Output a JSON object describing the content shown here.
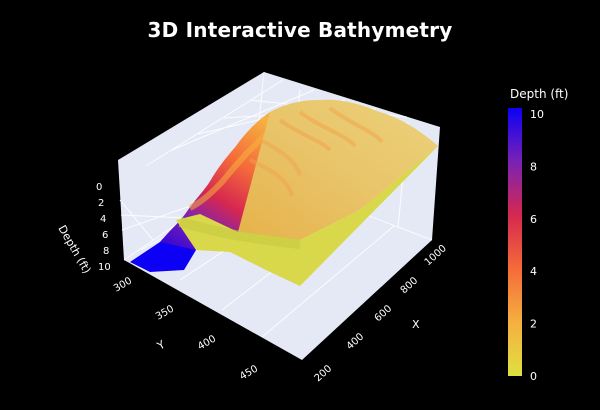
{
  "title": "3D Interactive Bathymetry",
  "chart_data": {
    "type": "surface3d",
    "title": "3D Interactive Bathymetry",
    "x_axis": {
      "label": "X",
      "range": [
        150,
        1100
      ],
      "ticks": [
        200,
        400,
        600,
        800,
        1000
      ]
    },
    "y_axis": {
      "label": "Y",
      "range": [
        285,
        470
      ],
      "ticks": [
        300,
        350,
        400,
        450
      ]
    },
    "z_axis": {
      "label": "Depth (ft)",
      "range": [
        10,
        0
      ],
      "ticks": [
        0,
        2,
        4,
        6,
        8,
        10
      ],
      "reversed": true
    },
    "colorbar": {
      "title": "Depth (ft)",
      "range": [
        0,
        10
      ],
      "ticks": [
        0,
        2,
        4,
        6,
        8,
        10
      ],
      "colorscale": [
        "#e0e040",
        "#f5b040",
        "#f56b3a",
        "#d6284f",
        "#7a22b4",
        "#0c00f5"
      ]
    },
    "grid": true,
    "background": "#000000",
    "pane_color": "#e5e9f5",
    "surface_summary": {
      "deep_channel_depth": 10,
      "shallow_flat_depth": 0.5,
      "transition_depth_range": [
        1,
        9
      ]
    }
  }
}
